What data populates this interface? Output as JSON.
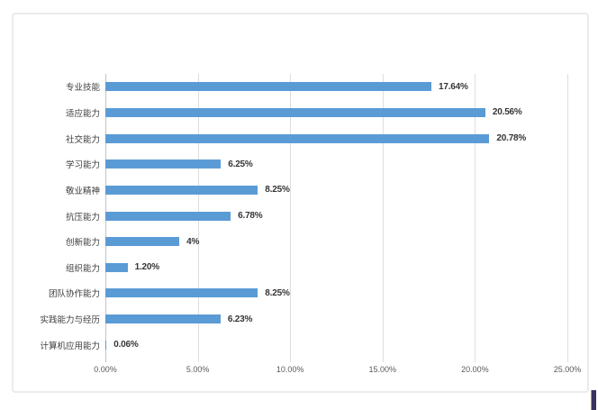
{
  "chart_data": {
    "type": "bar",
    "orientation": "horizontal",
    "title": "",
    "categories": [
      "专业技能",
      "适应能力",
      "社交能力",
      "学习能力",
      "敬业精神",
      "抗压能力",
      "创新能力",
      "组织能力",
      "团队协作能力",
      "实践能力与经历",
      "计算机应用能力"
    ],
    "values": [
      17.64,
      20.56,
      20.78,
      6.25,
      8.25,
      6.78,
      4,
      1.2,
      8.25,
      6.23,
      0.06
    ],
    "data_labels": [
      "17.64%",
      "20.56%",
      "20.78%",
      "6.25%",
      "8.25%",
      "6.78%",
      "4%",
      "1.20%",
      "8.25%",
      "6.23%",
      "0.06%"
    ],
    "x_ticks": [
      "0.00%",
      "5.00%",
      "10.00%",
      "15.00%",
      "20.00%",
      "25.00%"
    ],
    "xlim": [
      0,
      25
    ],
    "xlabel": "",
    "ylabel": "",
    "legend": "none",
    "grid": "vertical",
    "bar_color": "#5B9BD5",
    "gridline_color": "#dedede"
  }
}
